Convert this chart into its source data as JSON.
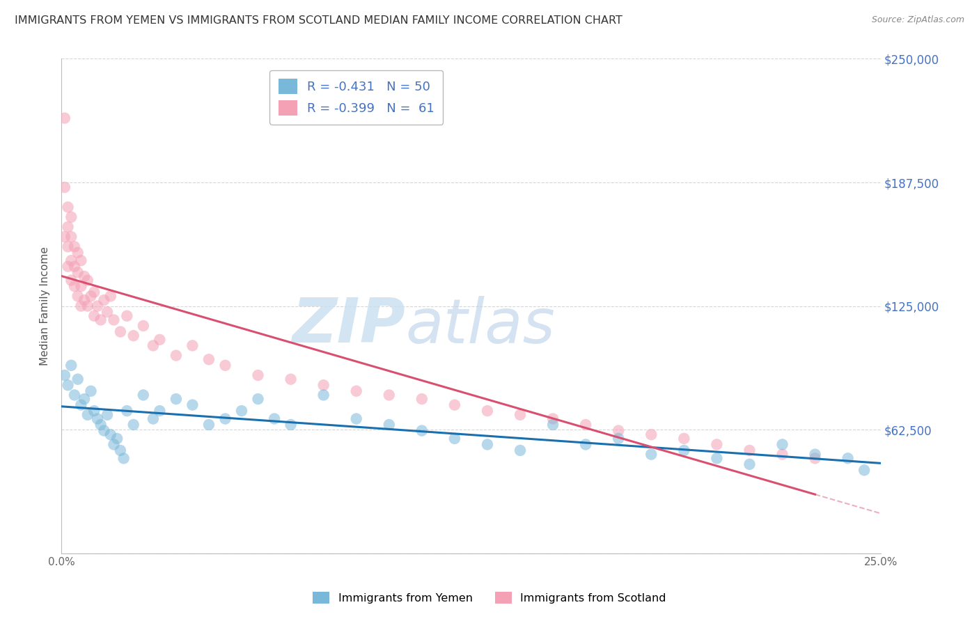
{
  "title": "IMMIGRANTS FROM YEMEN VS IMMIGRANTS FROM SCOTLAND MEDIAN FAMILY INCOME CORRELATION CHART",
  "source": "Source: ZipAtlas.com",
  "ylabel": "Median Family Income",
  "xlim": [
    0.0,
    0.25
  ],
  "ylim": [
    0,
    250000
  ],
  "yticks": [
    0,
    62500,
    125000,
    187500,
    250000
  ],
  "ytick_labels": [
    "",
    "$62,500",
    "$125,000",
    "$187,500",
    "$250,000"
  ],
  "xticks": [
    0.0,
    0.05,
    0.1,
    0.15,
    0.2,
    0.25
  ],
  "xtick_labels": [
    "0.0%",
    "",
    "",
    "",
    "",
    "25.0%"
  ],
  "R_yemen": -0.431,
  "N_yemen": 50,
  "R_scotland": -0.399,
  "N_scotland": 61,
  "color_yemen": "#7ab8d9",
  "color_scotland": "#f4a0b5",
  "line_color_yemen": "#1a6faf",
  "line_color_scotland": "#d94f70",
  "background_color": "#ffffff",
  "watermark_zip": "ZIP",
  "watermark_atlas": "atlas",
  "yemen_x": [
    0.001,
    0.002,
    0.003,
    0.004,
    0.005,
    0.006,
    0.007,
    0.008,
    0.009,
    0.01,
    0.011,
    0.012,
    0.013,
    0.014,
    0.015,
    0.016,
    0.017,
    0.018,
    0.019,
    0.02,
    0.022,
    0.025,
    0.028,
    0.03,
    0.035,
    0.04,
    0.045,
    0.05,
    0.055,
    0.06,
    0.065,
    0.07,
    0.08,
    0.09,
    0.1,
    0.11,
    0.12,
    0.13,
    0.14,
    0.15,
    0.16,
    0.17,
    0.18,
    0.19,
    0.2,
    0.21,
    0.22,
    0.23,
    0.24,
    0.245
  ],
  "yemen_y": [
    90000,
    85000,
    95000,
    80000,
    88000,
    75000,
    78000,
    70000,
    82000,
    72000,
    68000,
    65000,
    62000,
    70000,
    60000,
    55000,
    58000,
    52000,
    48000,
    72000,
    65000,
    80000,
    68000,
    72000,
    78000,
    75000,
    65000,
    68000,
    72000,
    78000,
    68000,
    65000,
    80000,
    68000,
    65000,
    62000,
    58000,
    55000,
    52000,
    65000,
    55000,
    58000,
    50000,
    52000,
    48000,
    45000,
    55000,
    50000,
    48000,
    42000
  ],
  "scotland_x": [
    0.001,
    0.001,
    0.001,
    0.002,
    0.002,
    0.002,
    0.002,
    0.003,
    0.003,
    0.003,
    0.003,
    0.004,
    0.004,
    0.004,
    0.005,
    0.005,
    0.005,
    0.006,
    0.006,
    0.006,
    0.007,
    0.007,
    0.008,
    0.008,
    0.009,
    0.01,
    0.01,
    0.011,
    0.012,
    0.013,
    0.014,
    0.015,
    0.016,
    0.018,
    0.02,
    0.022,
    0.025,
    0.028,
    0.03,
    0.035,
    0.04,
    0.045,
    0.05,
    0.06,
    0.07,
    0.08,
    0.09,
    0.1,
    0.11,
    0.12,
    0.13,
    0.14,
    0.15,
    0.16,
    0.17,
    0.18,
    0.19,
    0.2,
    0.21,
    0.22,
    0.23
  ],
  "scotland_y": [
    220000,
    185000,
    160000,
    175000,
    165000,
    155000,
    145000,
    170000,
    160000,
    148000,
    138000,
    155000,
    145000,
    135000,
    152000,
    142000,
    130000,
    148000,
    135000,
    125000,
    140000,
    128000,
    138000,
    125000,
    130000,
    132000,
    120000,
    125000,
    118000,
    128000,
    122000,
    130000,
    118000,
    112000,
    120000,
    110000,
    115000,
    105000,
    108000,
    100000,
    105000,
    98000,
    95000,
    90000,
    88000,
    85000,
    82000,
    80000,
    78000,
    75000,
    72000,
    70000,
    68000,
    65000,
    62000,
    60000,
    58000,
    55000,
    52000,
    50000,
    48000
  ]
}
